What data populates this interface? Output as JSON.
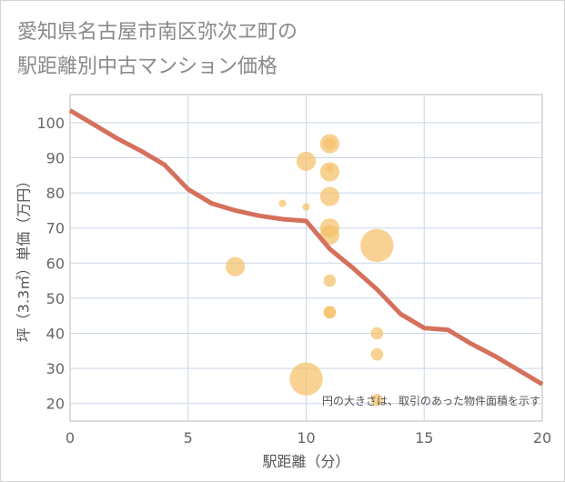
{
  "header": {
    "title_line1": "愛知県名古屋市南区弥次ヱ町の",
    "title_line2": "駅距離別中古マンション価格"
  },
  "colors": {
    "bubble": "#f5c16a",
    "line": "#d5705c",
    "grid": "#c9d6e6",
    "plot_border": "#bbbbbb"
  },
  "chart_data": {
    "type": "scatter",
    "title": "愛知県名古屋市南区弥次ヱ町の駅距離別中古マンション価格",
    "xlabel": "駅距離（分）",
    "ylabel": "坪（3.3㎡）単価（万円）",
    "xlim": [
      0,
      20
    ],
    "ylim": [
      15,
      108
    ],
    "xticks": [
      0,
      5,
      10,
      15,
      20
    ],
    "yticks": [
      20,
      30,
      40,
      50,
      60,
      70,
      80,
      90,
      100
    ],
    "grid": true,
    "annotation": "円の大きさは、取引のあった物件面積を示す",
    "bubbles": [
      {
        "x": 7,
        "y": 59,
        "size": 2
      },
      {
        "x": 9,
        "y": 77,
        "size": 0.3
      },
      {
        "x": 10,
        "y": 76,
        "size": 0.3
      },
      {
        "x": 10,
        "y": 89,
        "size": 2
      },
      {
        "x": 10,
        "y": 27,
        "size": 4
      },
      {
        "x": 11,
        "y": 94,
        "size": 2
      },
      {
        "x": 11,
        "y": 94,
        "size": 1
      },
      {
        "x": 11,
        "y": 87,
        "size": 0.3
      },
      {
        "x": 11,
        "y": 86,
        "size": 2
      },
      {
        "x": 11,
        "y": 79,
        "size": 2
      },
      {
        "x": 11,
        "y": 70,
        "size": 2
      },
      {
        "x": 11,
        "y": 68,
        "size": 2
      },
      {
        "x": 11,
        "y": 55,
        "size": 1
      },
      {
        "x": 11,
        "y": 46,
        "size": 1
      },
      {
        "x": 11,
        "y": 46,
        "size": 1
      },
      {
        "x": 13,
        "y": 65,
        "size": 4
      },
      {
        "x": 13,
        "y": 40,
        "size": 1
      },
      {
        "x": 13,
        "y": 34,
        "size": 1
      },
      {
        "x": 13,
        "y": 21,
        "size": 1
      }
    ],
    "series": [
      {
        "name": "average",
        "x": [
          0,
          1,
          2,
          3,
          4,
          5,
          6,
          7,
          8,
          9,
          10,
          11,
          12,
          13,
          14,
          15,
          16,
          17,
          18,
          19,
          20
        ],
        "values": [
          103.5,
          99.5,
          95.5,
          92,
          88,
          81,
          77,
          75,
          73.5,
          72.5,
          72,
          64,
          58.5,
          52.5,
          45.5,
          41.5,
          41,
          37,
          33.5,
          29.5,
          25.5
        ]
      }
    ]
  }
}
